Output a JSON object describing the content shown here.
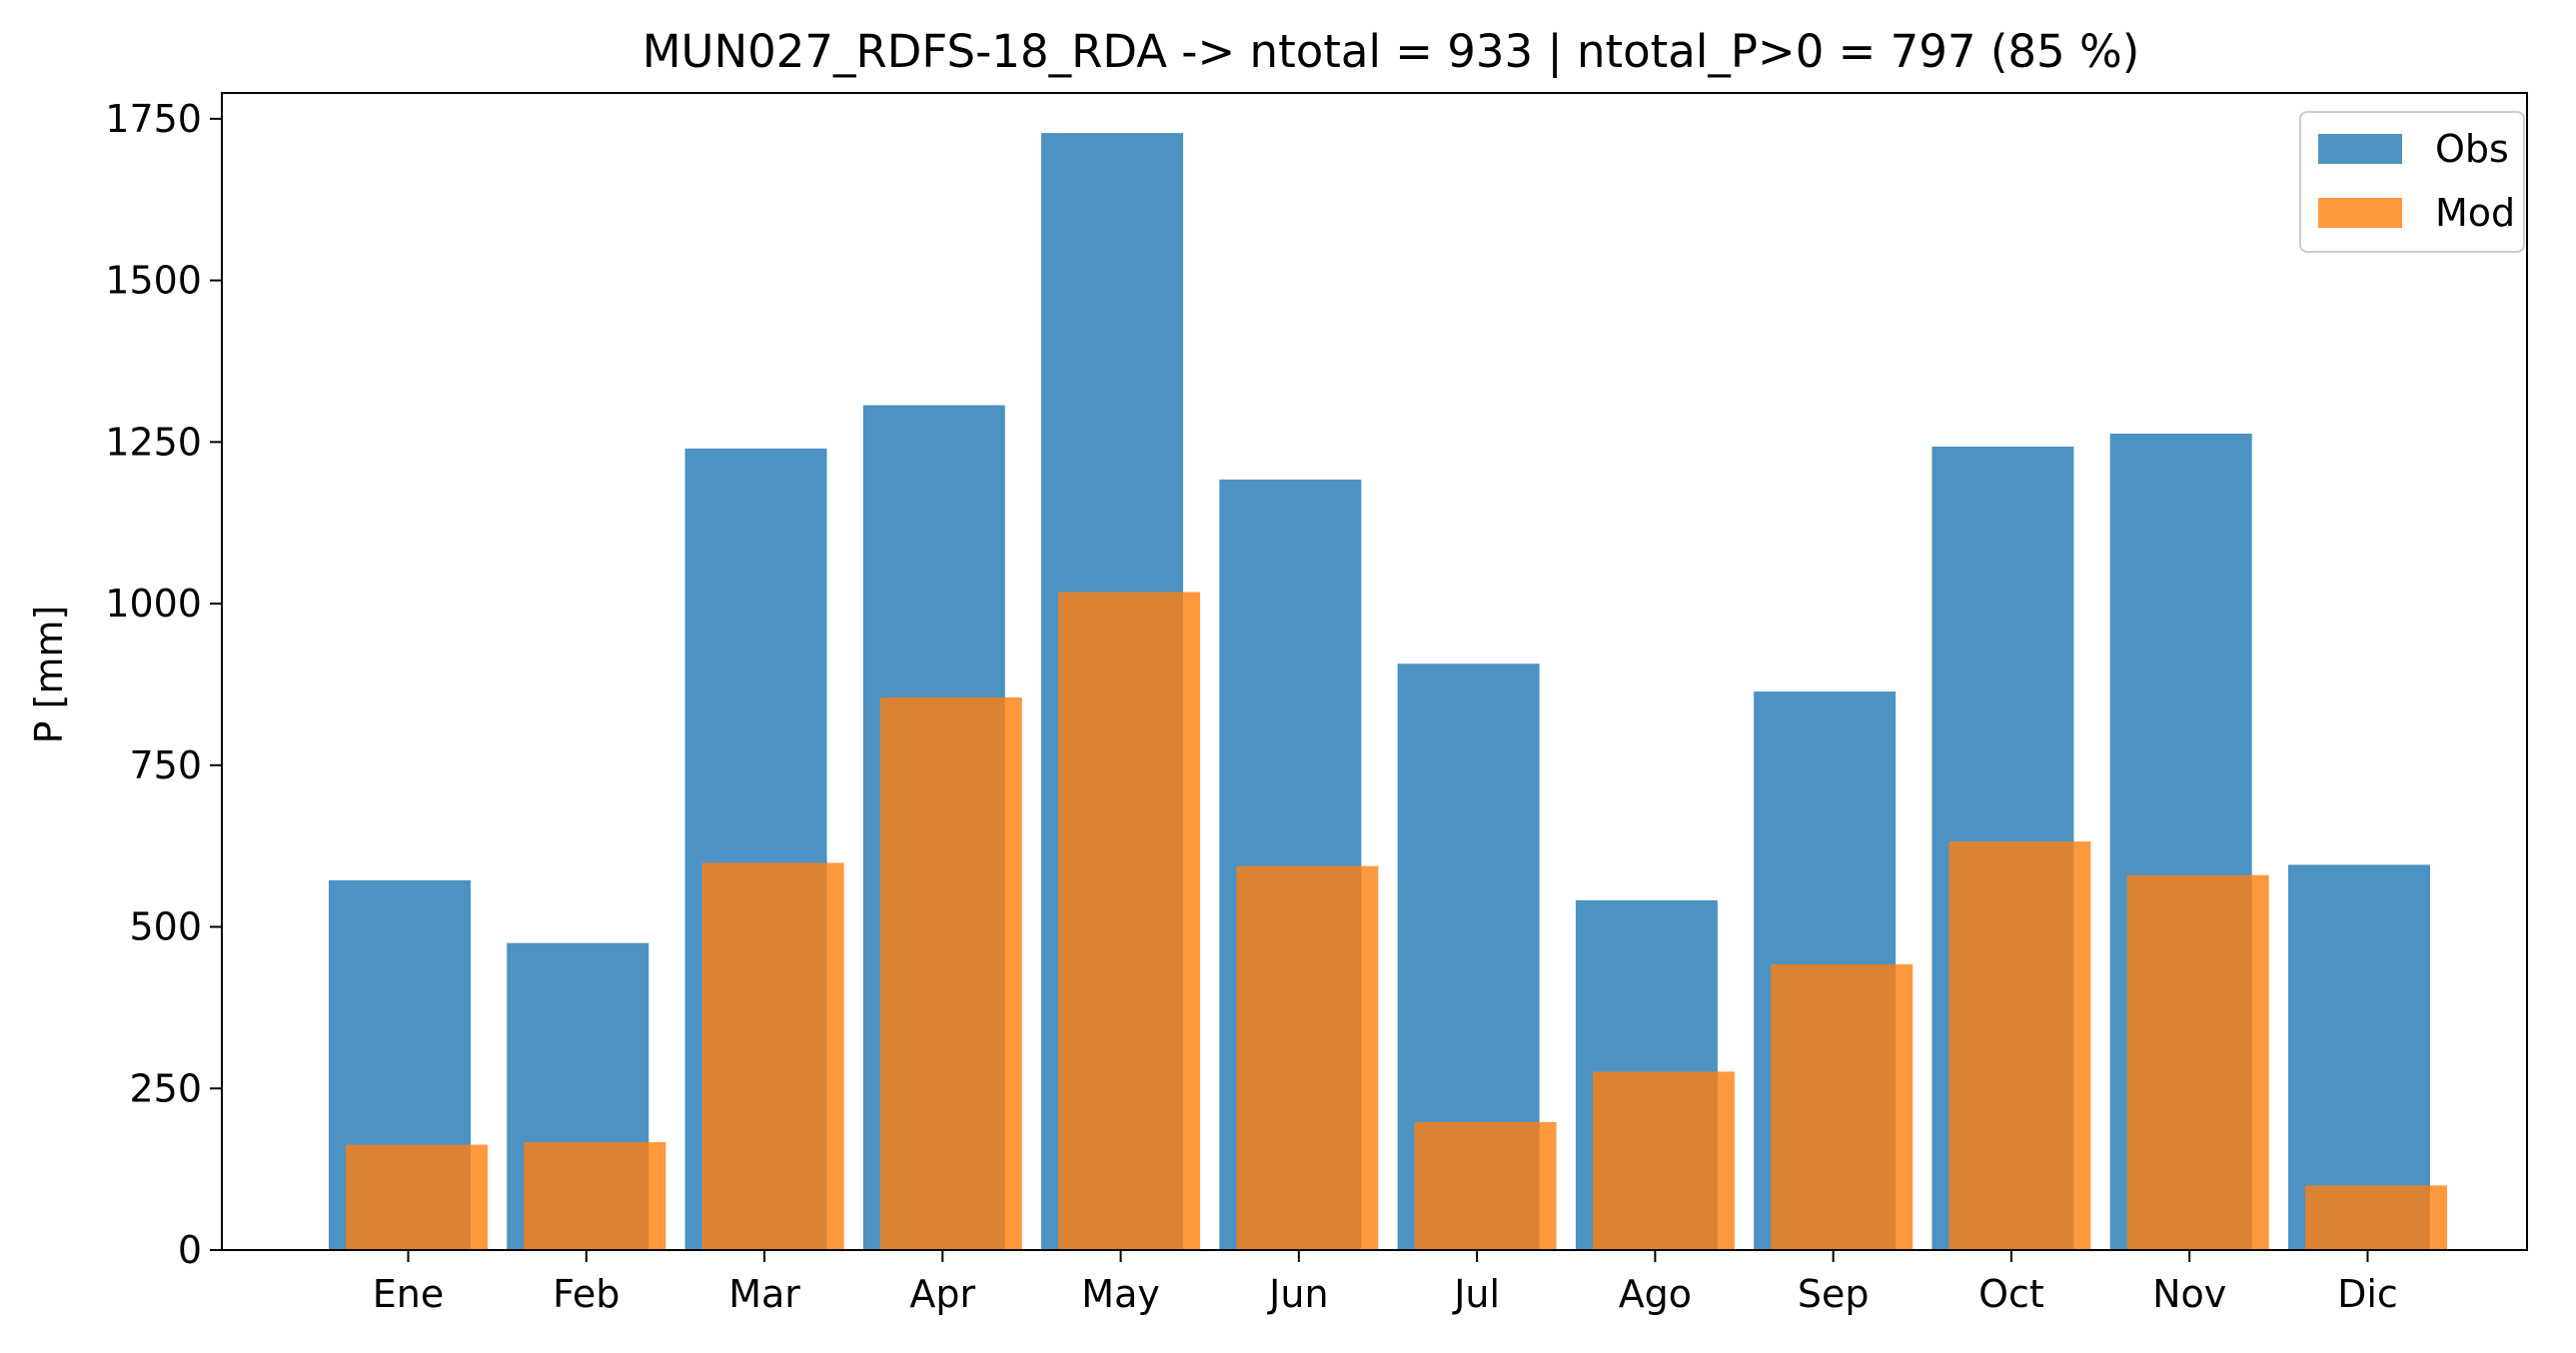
{
  "chart_data": {
    "type": "bar",
    "title": "MUN027_RDFS-18_RDA -> ntotal = 933 | ntotal_P>0 = 797 (85 %)",
    "xlabel": "",
    "ylabel": "P [mm]",
    "ylim": [
      0,
      1790
    ],
    "yticks": [
      0,
      250,
      500,
      750,
      1000,
      1250,
      1500,
      1750
    ],
    "categories": [
      "Ene",
      "Feb",
      "Mar",
      "Apr",
      "May",
      "Jun",
      "Jul",
      "Ago",
      "Sep",
      "Oct",
      "Nov",
      "Dic"
    ],
    "series": [
      {
        "name": "Obs",
        "color": "#1f77b4",
        "opacity": 0.8,
        "values": [
          572,
          475,
          1240,
          1307,
          1728,
          1192,
          907,
          541,
          864,
          1243,
          1263,
          596
        ]
      },
      {
        "name": "Mod",
        "color": "#ff7f0e",
        "opacity": 0.8,
        "values": [
          163,
          167,
          599,
          855,
          1018,
          594,
          198,
          276,
          442,
          632,
          580,
          100
        ]
      }
    ],
    "legend": "top-right",
    "grid": false
  }
}
